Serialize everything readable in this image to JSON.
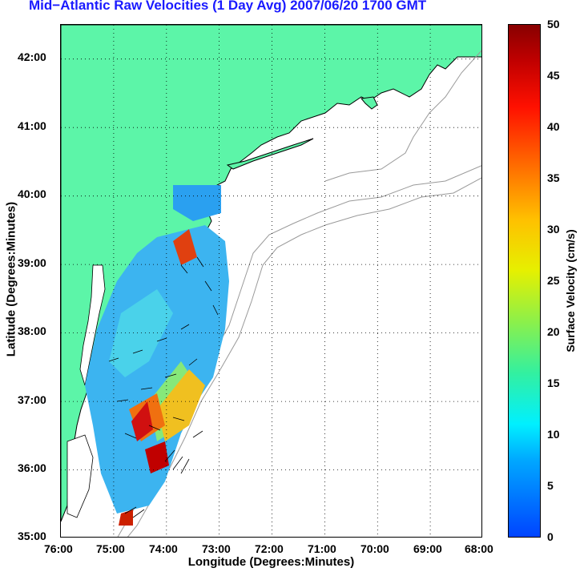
{
  "title": "Mid−Atlantic Raw Velocities (1 Day Avg) 2007/06/20 1700 GMT",
  "x_axis": {
    "label": "Longitude (Degrees:Minutes)",
    "ticks": [
      "76:00",
      "75:00",
      "74:00",
      "73:00",
      "72:00",
      "71:00",
      "70:00",
      "69:00",
      "68:00"
    ]
  },
  "y_axis": {
    "label": "Latitude (Degrees:Minutes)",
    "ticks": [
      "42:00",
      "41:00",
      "40:00",
      "39:00",
      "38:00",
      "37:00",
      "36:00",
      "35:00"
    ]
  },
  "colorbar": {
    "label": "Surface Velocity (cm/s)",
    "ticks": [
      "50",
      "45",
      "40",
      "35",
      "30",
      "25",
      "20",
      "15",
      "10",
      "5",
      "0"
    ],
    "range": [
      0,
      50
    ]
  },
  "colors": {
    "land": "#5cf5a8",
    "title": "#1a1aff",
    "grid": "#000000",
    "bathymetry": "#9a9a9a"
  },
  "map_extent": {
    "lon": [
      -76,
      -68
    ],
    "lat": [
      35,
      42.5
    ]
  },
  "grid": true
}
